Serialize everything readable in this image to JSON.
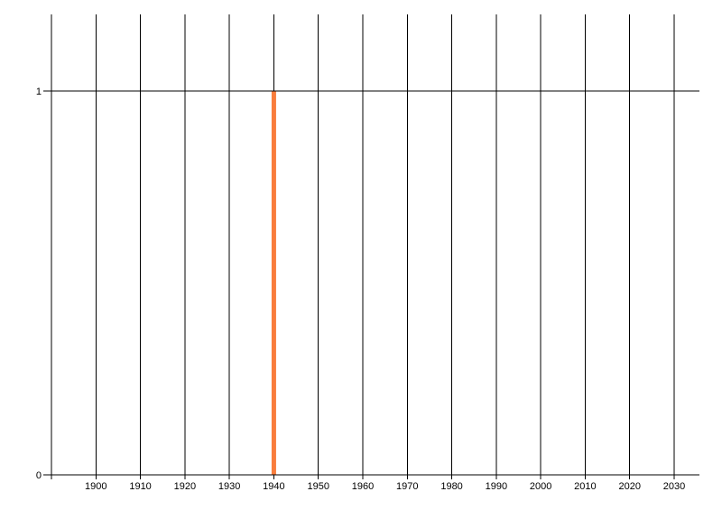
{
  "chart_data": {
    "type": "bar",
    "title": "",
    "xlabel": "",
    "ylabel": "",
    "x": [
      1940
    ],
    "values": [
      1
    ],
    "x_tick_labels": [
      "1900",
      "1910",
      "1920",
      "1930",
      "1940",
      "1950",
      "1960",
      "1970",
      "1980",
      "1990",
      "2000",
      "2010",
      "2020",
      "2030"
    ],
    "y_ticks": [
      {
        "value": 0,
        "label": "0"
      },
      {
        "value": 1,
        "label": "1"
      }
    ],
    "x_gridlines": {
      "start": 1890,
      "end": 2030,
      "step": 10
    },
    "xlim": [
      1888,
      2036
    ],
    "ylim": [
      0,
      1.2
    ],
    "grid": {
      "vertical": true,
      "horizontal_at_y_ticks": true
    },
    "legend_position": "none",
    "colors": {
      "bar": "#F97D3C",
      "grid": "#000000",
      "axis": "#000000",
      "tick_label": "#000000",
      "background": "#FFFFFF"
    }
  }
}
